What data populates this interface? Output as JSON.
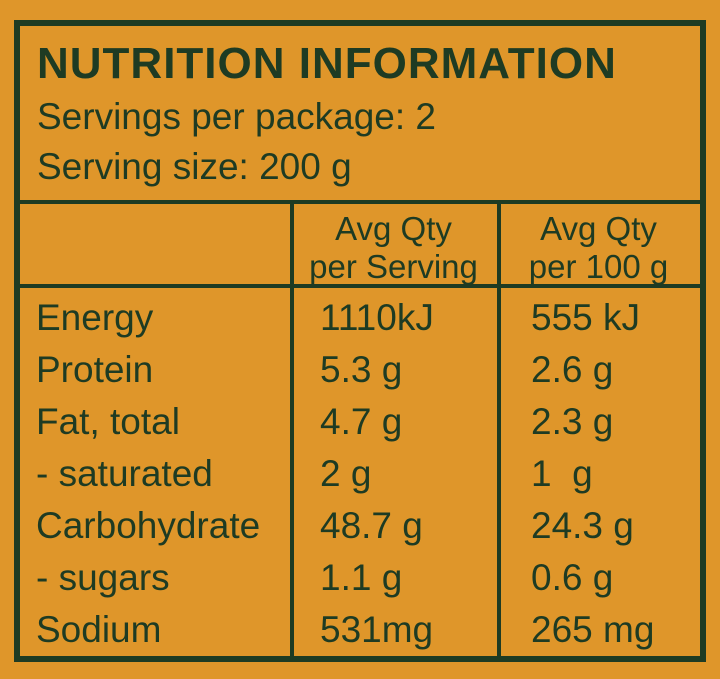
{
  "colors": {
    "background": "#DF962A",
    "ink": "#1E3B23"
  },
  "label": {
    "title": "NUTRITION INFORMATION",
    "servings_per_package": "Servings per package: 2",
    "serving_size": "Serving size: 200 g"
  },
  "table": {
    "col_headers": [
      {
        "line1": "Avg Qty",
        "line2": "per Serving"
      },
      {
        "line1": "Avg Qty",
        "line2": "per 100 g"
      }
    ],
    "rows": [
      {
        "nutrient": "Energy",
        "per_serving": "1110kJ",
        "per_100g": "555 kJ"
      },
      {
        "nutrient": "Protein",
        "per_serving": "5.3 g",
        "per_100g": "2.6 g"
      },
      {
        "nutrient": "Fat, total",
        "per_serving": "4.7 g",
        "per_100g": "2.3 g"
      },
      {
        "nutrient": "- saturated",
        "per_serving": "2 g",
        "per_100g": "1  g"
      },
      {
        "nutrient": "Carbohydrate",
        "per_serving": "48.7 g",
        "per_100g": "24.3 g"
      },
      {
        "nutrient": "- sugars",
        "per_serving": "1.1 g",
        "per_100g": "0.6 g"
      },
      {
        "nutrient": "Sodium",
        "per_serving": "531mg",
        "per_100g": "265 mg"
      }
    ]
  }
}
